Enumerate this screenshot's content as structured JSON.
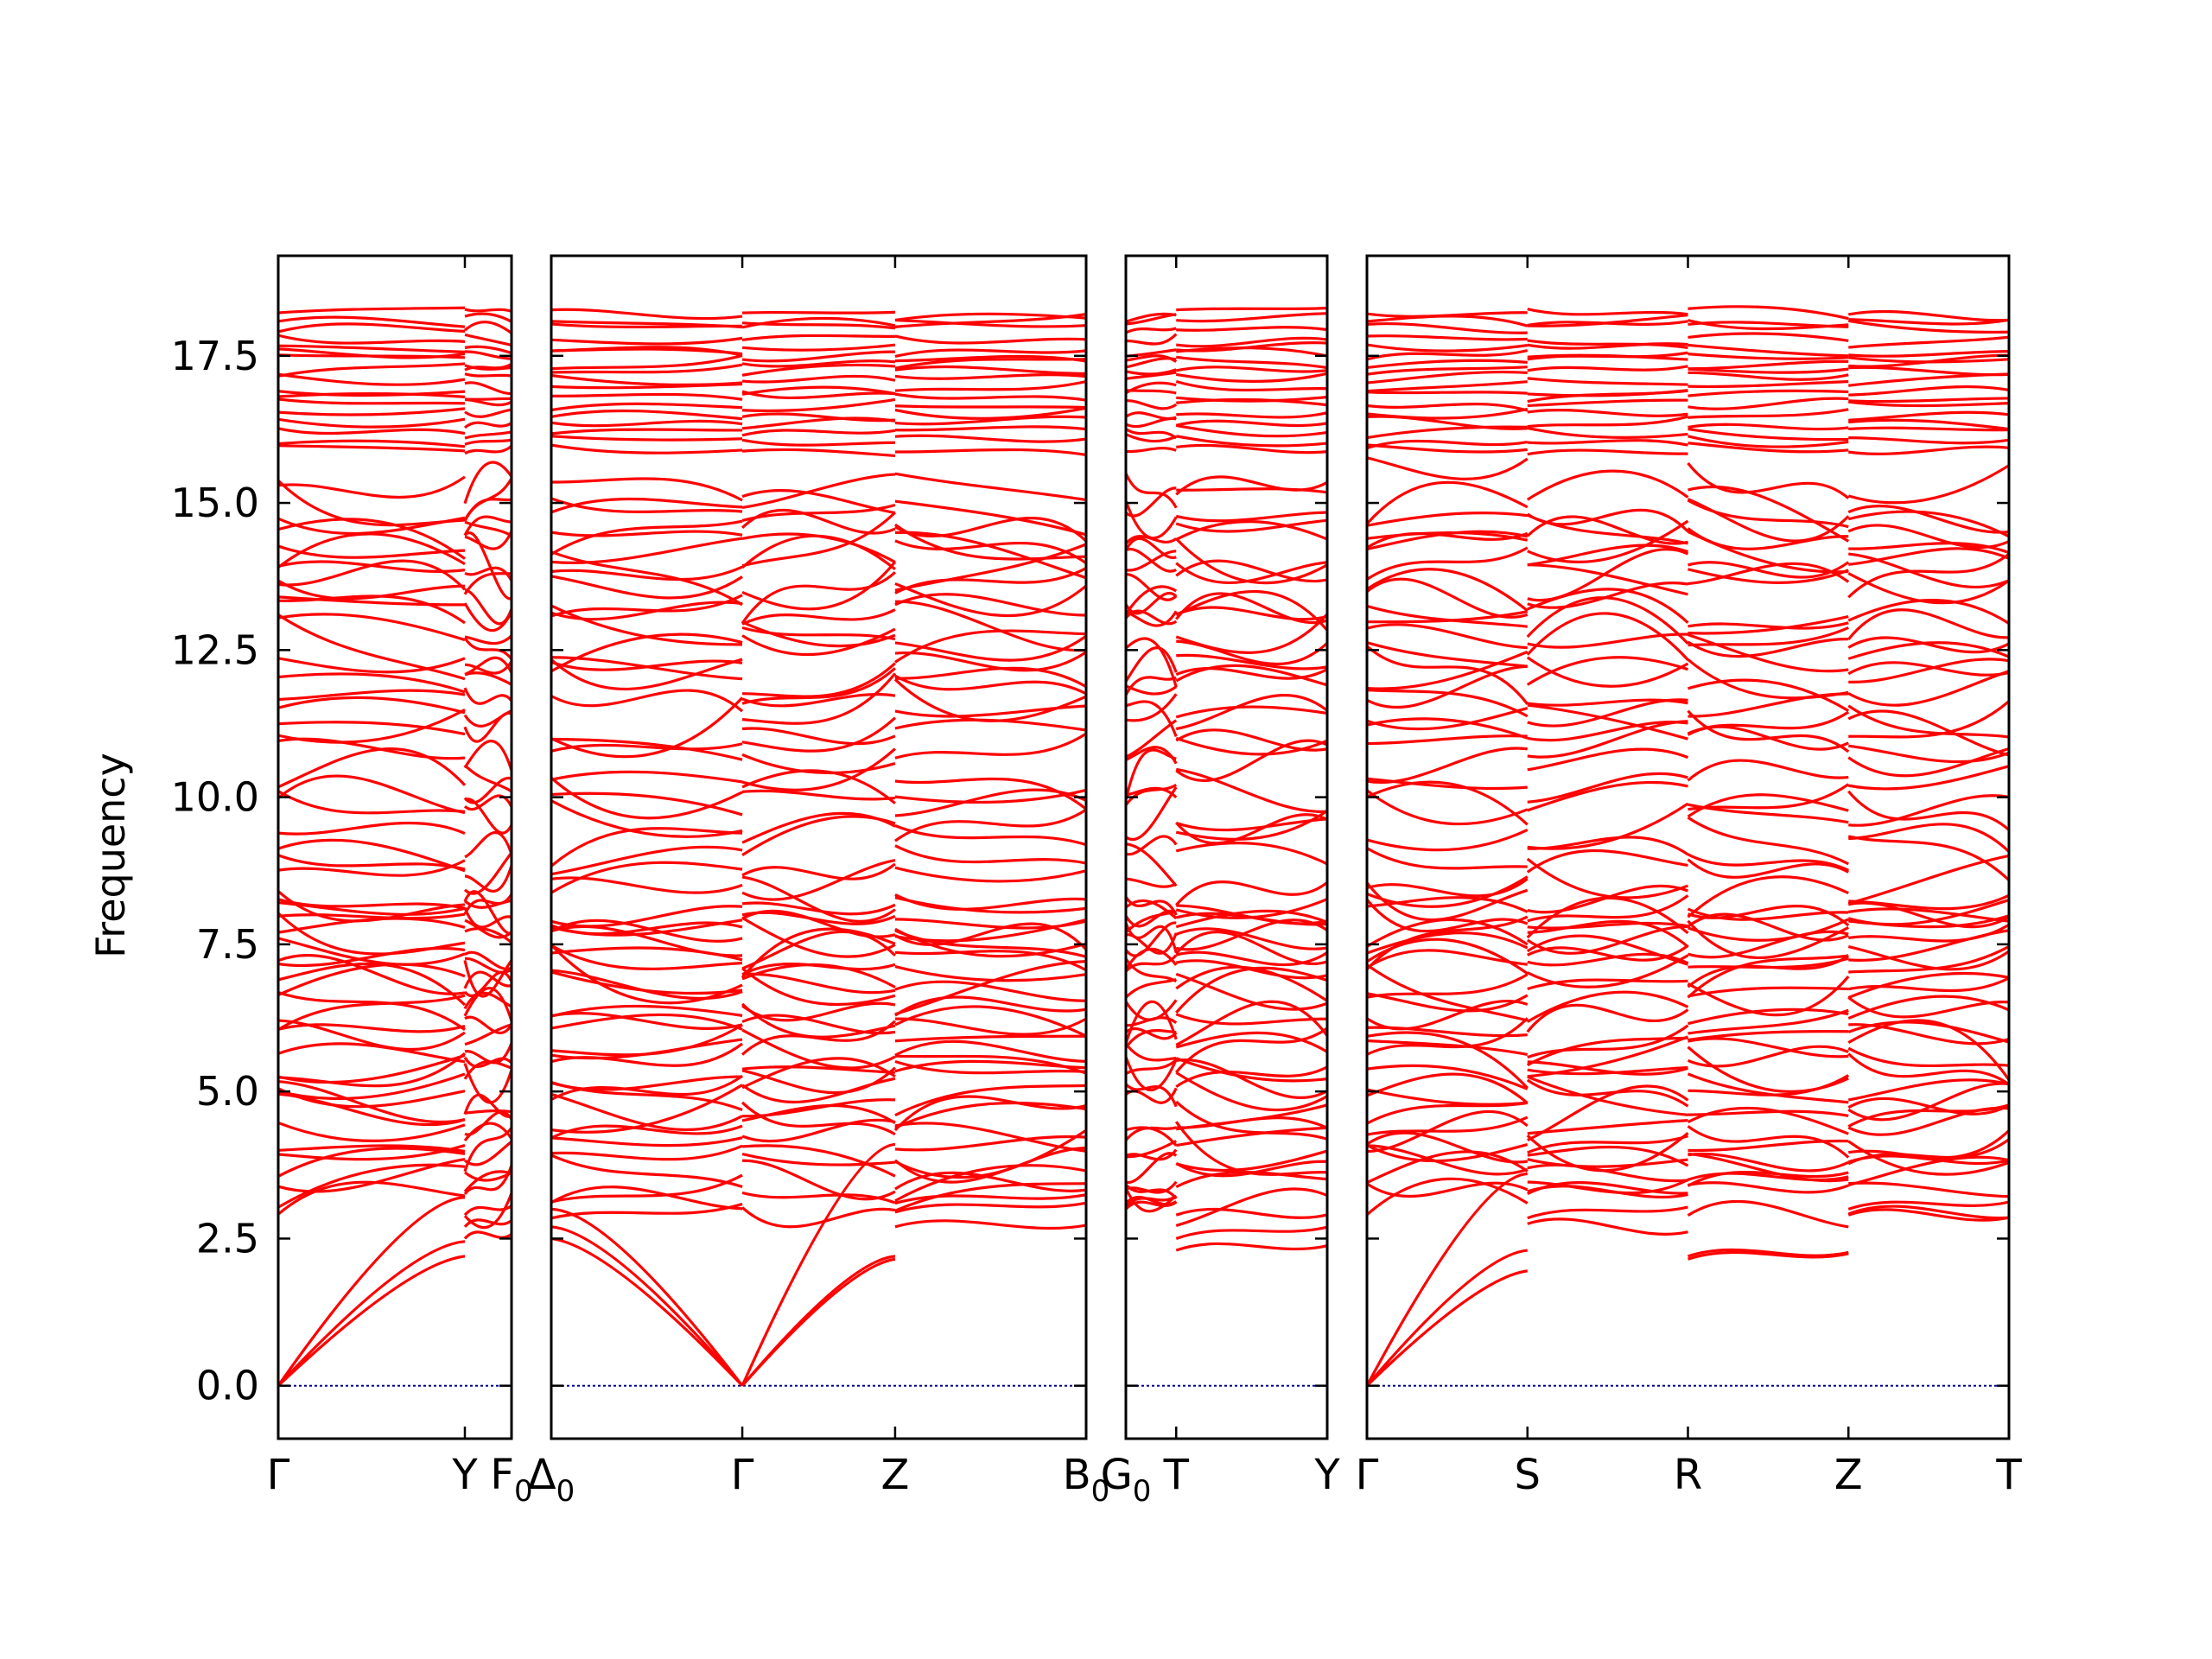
{
  "chart_data": {
    "type": "line",
    "title": "",
    "xlabel": "",
    "ylabel": "Frequency",
    "ylim": [
      -0.9,
      19.2
    ],
    "yticks": [
      0.0,
      2.5,
      5.0,
      7.5,
      10.0,
      12.5,
      15.0,
      17.5
    ],
    "ytick_labels": [
      "0.0",
      "2.5",
      "5.0",
      "7.5",
      "10.0",
      "12.5",
      "15.0",
      "17.5"
    ],
    "grid": false,
    "legend": "none",
    "line_color": "#ff0000",
    "zero_line_color": "#00008b",
    "panels": [
      {
        "name": "panel-1",
        "x_range": [
          0,
          1.0
        ],
        "ticks": [
          {
            "x": 0.0,
            "label": "Γ",
            "sub": ""
          },
          {
            "x": 0.8,
            "label": "Y",
            "sub": ""
          },
          {
            "x": 1.0,
            "label": "F",
            "sub": "0"
          }
        ],
        "segments": [
          {
            "x0": 0.0,
            "x1": 0.8,
            "acoustic": {
              "gamma_at": "start",
              "ends": [
                2.2,
                2.45,
                3.2
              ]
            }
          },
          {
            "x0": 0.8,
            "x1": 1.0,
            "acoustic_ends": [
              2.5,
              2.7,
              2.9
            ]
          }
        ]
      },
      {
        "name": "panel-2",
        "x_range": [
          0,
          2.8
        ],
        "ticks": [
          {
            "x": 0.0,
            "label": "Δ",
            "sub": "0"
          },
          {
            "x": 1.0,
            "label": "Γ",
            "sub": ""
          },
          {
            "x": 1.8,
            "label": "Z",
            "sub": ""
          },
          {
            "x": 2.8,
            "label": "B",
            "sub": "0"
          }
        ],
        "segments": [
          {
            "x0": 0.0,
            "x1": 1.0,
            "acoustic": {
              "gamma_at": "end",
              "ends": [
                2.5,
                2.7,
                3.0
              ]
            }
          },
          {
            "x0": 1.0,
            "x1": 1.8,
            "acoustic": {
              "gamma_at": "start",
              "ends": [
                2.15,
                2.2,
                4.1
              ]
            }
          },
          {
            "x0": 1.8,
            "x1": 2.8,
            "acoustic_ends": [
              2.7,
              2.95,
              3.1
            ]
          }
        ]
      },
      {
        "name": "panel-3",
        "x_range": [
          0,
          1.0
        ],
        "ticks": [
          {
            "x": 0.0,
            "label": "G",
            "sub": "0"
          },
          {
            "x": 0.25,
            "label": "T",
            "sub": ""
          },
          {
            "x": 1.0,
            "label": "Y",
            "sub": ""
          }
        ],
        "segments": [
          {
            "x0": 0.0,
            "x1": 0.25,
            "acoustic_ends": [
              3.0,
              3.05,
              3.1
            ]
          },
          {
            "x0": 0.25,
            "x1": 1.0,
            "acoustic_ends": [
              2.3,
              2.5,
              2.9
            ]
          }
        ]
      },
      {
        "name": "panel-4",
        "x_range": [
          0,
          4.0
        ],
        "ticks": [
          {
            "x": 0.0,
            "label": "Γ",
            "sub": ""
          },
          {
            "x": 1.0,
            "label": "S",
            "sub": ""
          },
          {
            "x": 2.0,
            "label": "R",
            "sub": ""
          },
          {
            "x": 3.0,
            "label": "Z",
            "sub": ""
          },
          {
            "x": 4.0,
            "label": "T",
            "sub": ""
          }
        ],
        "segments": [
          {
            "x0": 0.0,
            "x1": 1.0,
            "acoustic": {
              "gamma_at": "start",
              "ends": [
                1.95,
                2.3,
                3.6
              ]
            }
          },
          {
            "x0": 1.0,
            "x1": 2.0,
            "acoustic_ends": [
              2.75,
              2.85,
              3.3
            ]
          },
          {
            "x0": 2.0,
            "x1": 3.0,
            "acoustic_ends": [
              2.15,
              2.2,
              3.5
            ]
          },
          {
            "x0": 3.0,
            "x1": 4.0,
            "acoustic_ends": [
              2.9,
              3.0,
              3.8
            ]
          }
        ]
      }
    ],
    "optical_band_levels_lower": [
      3.1,
      3.35,
      3.55,
      3.75,
      3.95,
      4.15,
      4.35,
      4.55,
      4.75,
      4.95,
      5.1,
      5.3,
      5.5,
      5.7,
      5.9,
      6.1,
      6.3,
      6.5,
      6.7,
      6.9,
      7.05,
      7.2,
      7.4,
      7.55,
      7.7,
      7.85,
      8.0,
      8.15,
      8.3,
      8.6,
      8.95,
      9.3,
      9.6,
      9.9,
      10.2,
      10.5,
      10.8,
      11.05,
      11.3,
      11.55,
      11.8,
      12.05,
      12.3,
      12.55,
      12.8,
      13.0,
      13.2,
      13.45,
      13.7,
      13.95,
      14.15,
      14.35,
      14.55,
      14.75,
      15.0,
      15.3
    ],
    "optical_band_levels_upper": [
      15.9,
      16.05,
      16.2,
      16.35,
      16.5,
      16.65,
      16.8,
      16.95,
      17.1,
      17.25,
      17.4,
      17.5,
      17.6,
      17.75,
      18.0,
      18.1,
      18.2
    ]
  }
}
